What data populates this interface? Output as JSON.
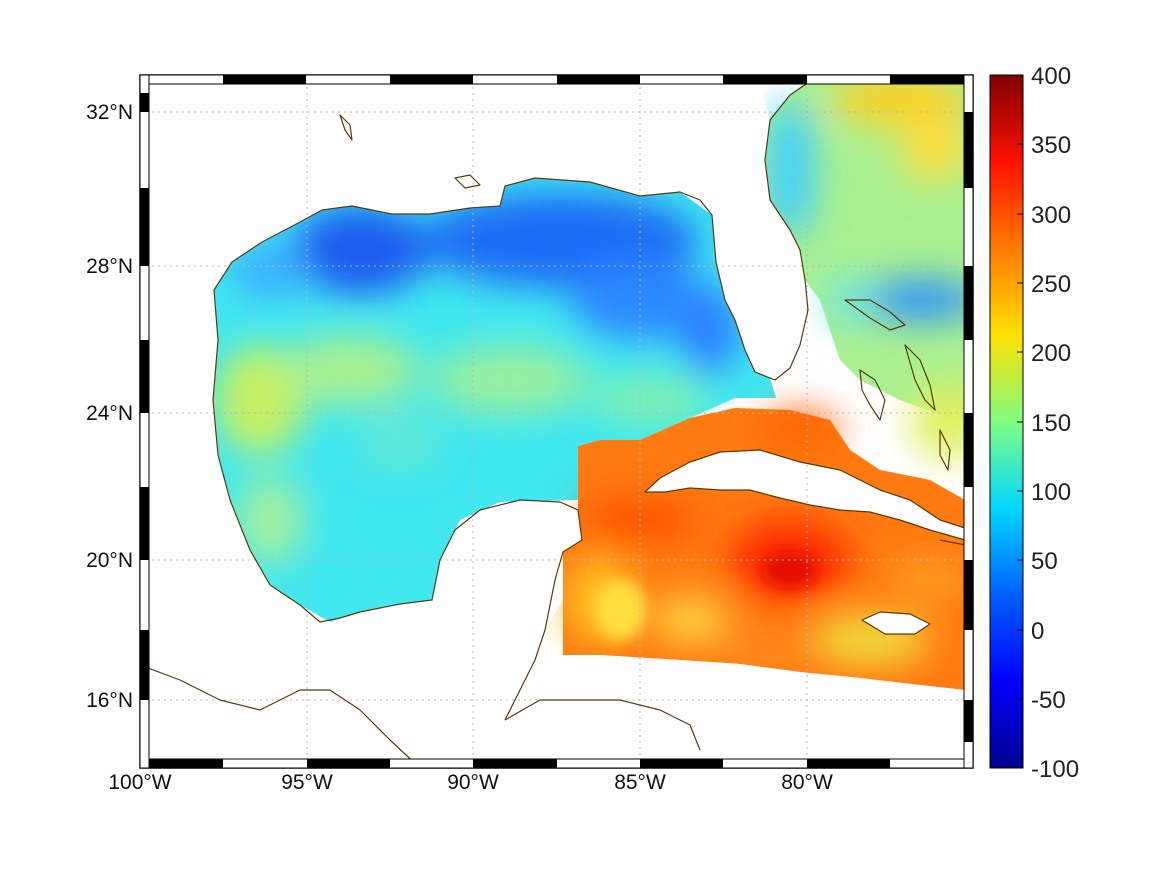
{
  "map": {
    "lon_labels": [
      "100°W",
      "95°W",
      "90°W",
      "85°W",
      "80°W"
    ],
    "lat_labels": [
      "32°N",
      "28°N",
      "24°N",
      "20°N",
      "16°N"
    ]
  },
  "colorbar": {
    "labels": [
      "400",
      "350",
      "300",
      "250",
      "200",
      "150",
      "100",
      "50",
      "0",
      "-50",
      "-100"
    ],
    "colormap": [
      "#00008f",
      "#0000ff",
      "#0080ff",
      "#00ffff",
      "#80ff80",
      "#ffff00",
      "#ff8000",
      "#ff0000",
      "#800000"
    ]
  },
  "colors": {
    "coastline": "#5a3a0a",
    "land": "#ffffff"
  }
}
